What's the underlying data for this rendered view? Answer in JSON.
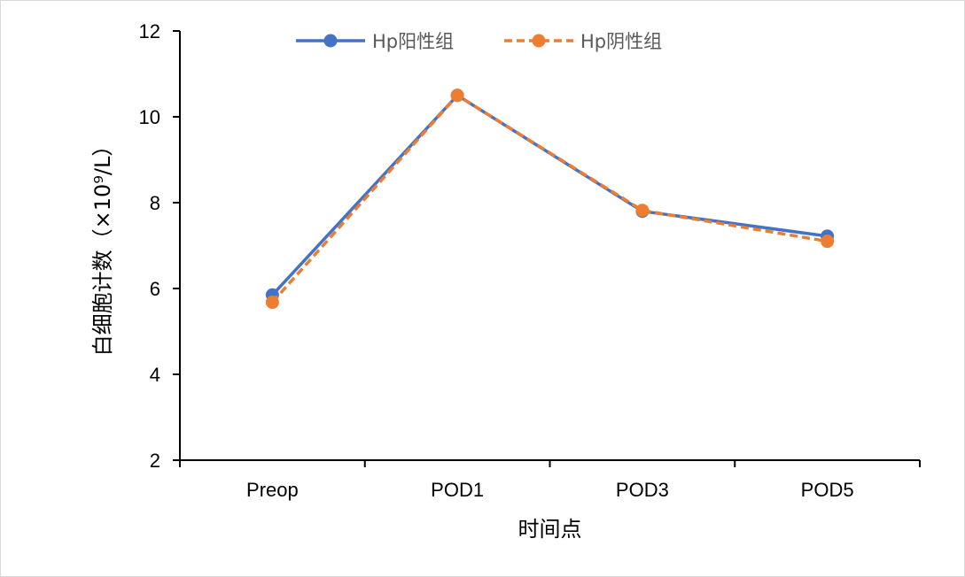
{
  "chart_data": {
    "type": "line",
    "title": "",
    "xlabel": "时间点",
    "ylabel": "白细胞计数（×10⁹/L）",
    "categories": [
      "Preop",
      "POD1",
      "POD3",
      "POD5"
    ],
    "ylim": [
      2,
      12
    ],
    "yticks": [
      2,
      4,
      6,
      8,
      10,
      12
    ],
    "grid": false,
    "legend_position": "top",
    "series": [
      {
        "name": "Hp阳性组",
        "values": [
          5.85,
          10.5,
          7.8,
          7.22
        ],
        "color": "#4472C4",
        "line_style": "solid",
        "marker": "circle"
      },
      {
        "name": "Hp阴性组",
        "values": [
          5.68,
          10.5,
          7.82,
          7.1
        ],
        "color": "#ED7D31",
        "line_style": "dashed",
        "marker": "circle"
      }
    ]
  }
}
